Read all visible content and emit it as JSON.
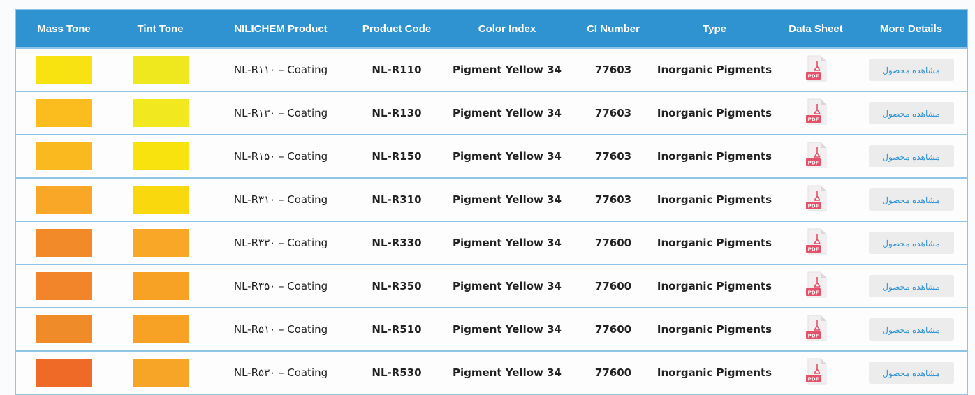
{
  "headers": [
    "Mass Tone",
    "Tint Tone",
    "NILICHEM Product",
    "Product Code",
    "Color Index",
    "CI Number",
    "Type",
    "Data Sheet",
    "More Details"
  ],
  "rows": [
    {
      "mass": "#f8e20f",
      "tint": "#f0e81e",
      "product": "NL-R۱۱۰ – Coating",
      "code": "NL-R110",
      "index": "Pigment Yellow 34",
      "ci": "77603",
      "type": "Inorganic Pigments",
      "sheet_icon": "pdf-icon",
      "details": "مشاهده محصول"
    },
    {
      "mass": "#fbbd1e",
      "tint": "#f1e820",
      "product": "NL-R۱۳۰ – Coating",
      "code": "NL-R130",
      "index": "Pigment Yellow 34",
      "ci": "77603",
      "type": "Inorganic Pigments",
      "sheet_icon": "pdf-icon",
      "details": "مشاهده محصول"
    },
    {
      "mass": "#fbb920",
      "tint": "#f9e30e",
      "product": "NL-R۱۵۰ – Coating",
      "code": "NL-R150",
      "index": "Pigment Yellow 34",
      "ci": "77603",
      "type": "Inorganic Pigments",
      "sheet_icon": "pdf-icon",
      "details": "مشاهده محصول"
    },
    {
      "mass": "#f8a826",
      "tint": "#f9d80e",
      "product": "NL-R۳۱۰ – Coating",
      "code": "NL-R310",
      "index": "Pigment Yellow 34",
      "ci": "77603",
      "type": "Inorganic Pigments",
      "sheet_icon": "pdf-icon",
      "details": "مشاهده محصول"
    },
    {
      "mass": "#f28a2a",
      "tint": "#f8a726",
      "product": "NL-R۳۳۰ – Coating",
      "code": "NL-R330",
      "index": "Pigment Yellow 34",
      "ci": "77600",
      "type": "Inorganic Pigments",
      "sheet_icon": "pdf-icon",
      "details": "مشاهده محصول"
    },
    {
      "mass": "#f28529",
      "tint": "#f7a125",
      "product": "NL-R۳۵۰ – Coating",
      "code": "NL-R350",
      "index": "Pigment Yellow 34",
      "ci": "77600",
      "type": "Inorganic Pigments",
      "sheet_icon": "pdf-icon",
      "details": "مشاهده محصول"
    },
    {
      "mass": "#f08b2a",
      "tint": "#f7a125",
      "product": "NL-R۵۱۰ – Coating",
      "code": "NL-R510",
      "index": "Pigment Yellow 34",
      "ci": "77600",
      "type": "Inorganic Pigments",
      "sheet_icon": "pdf-icon",
      "details": "مشاهده محصول"
    },
    {
      "mass": "#ee6a26",
      "tint": "#f7a526",
      "product": "NL-R۵۳۰ – Coating",
      "code": "NL-R530",
      "index": "Pigment Yellow 34",
      "ci": "77600",
      "type": "Inorganic Pigments",
      "sheet_icon": "pdf-icon",
      "details": "مشاهده محصول"
    }
  ]
}
